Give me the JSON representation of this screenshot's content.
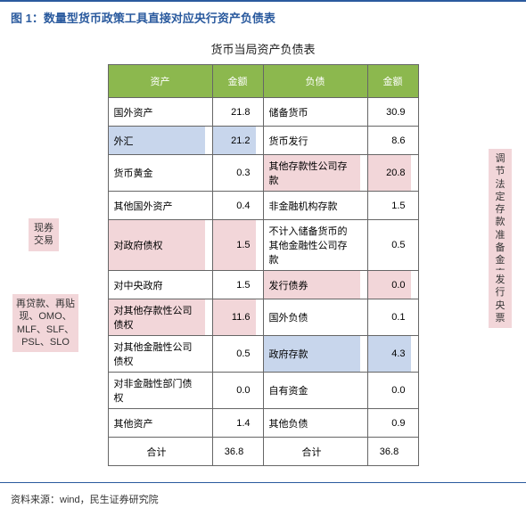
{
  "figure_label": "图 1：数量型货币政策工具直接对应央行资产负债表",
  "table_title": "货币当局资产负债表",
  "headers": {
    "asset": "资产",
    "asset_amount": "金额",
    "liability": "负债",
    "liability_amount": "金额"
  },
  "rows": [
    {
      "asset": "国外资产",
      "asset_amount": "21.8",
      "liability": "储备货币",
      "liability_amount": "30.9",
      "a_hl": "",
      "l_hl": ""
    },
    {
      "asset": "外汇",
      "asset_amount": "21.2",
      "liability": "货币发行",
      "liability_amount": "8.6",
      "a_hl": "hl-blue",
      "l_hl": ""
    },
    {
      "asset": "货币黄金",
      "asset_amount": "0.3",
      "liability": "其他存款性公司存款",
      "liability_amount": "20.8",
      "a_hl": "",
      "l_hl": "hl-pink"
    },
    {
      "asset": "其他国外资产",
      "asset_amount": "0.4",
      "liability": "非金融机构存款",
      "liability_amount": "1.5",
      "a_hl": "",
      "l_hl": ""
    },
    {
      "asset": "对政府债权",
      "asset_amount": "1.5",
      "liability": "不计入储备货币的其他金融性公司存款",
      "liability_amount": "0.5",
      "a_hl": "hl-pink",
      "l_hl": ""
    },
    {
      "asset": "对中央政府",
      "asset_amount": "1.5",
      "liability": "发行债券",
      "liability_amount": "0.0",
      "a_hl": "",
      "l_hl": "hl-pink"
    },
    {
      "asset": "对其他存款性公司债权",
      "asset_amount": "11.6",
      "liability": "国外负债",
      "liability_amount": "0.1",
      "a_hl": "hl-pink",
      "l_hl": ""
    },
    {
      "asset": "对其他金融性公司债权",
      "asset_amount": "0.5",
      "liability": "政府存款",
      "liability_amount": "4.3",
      "a_hl": "",
      "l_hl": "hl-blue"
    },
    {
      "asset": "对非金融性部门债权",
      "asset_amount": "0.0",
      "liability": "自有资金",
      "liability_amount": "0.0",
      "a_hl": "",
      "l_hl": ""
    },
    {
      "asset": "其他资产",
      "asset_amount": "1.4",
      "liability": "其他负债",
      "liability_amount": "0.9",
      "a_hl": "",
      "l_hl": ""
    }
  ],
  "total": {
    "label": "合计",
    "asset_amount": "36.8",
    "liability_amount": "36.8"
  },
  "callouts": {
    "left1": "现券交易",
    "left2": "再贷款、再贴现、OMO、MLF、SLF、PSL、SLO",
    "right1": "调节法定存款准备金率",
    "right2": "发行央票"
  },
  "source": "资料来源：wind，民生证券研究院",
  "colors": {
    "header_bg": "#8cb84e",
    "highlight_blue": "#c8d6ec",
    "highlight_pink": "#f2d6d9",
    "title_color": "#2a5a9e",
    "border": "#666666"
  }
}
